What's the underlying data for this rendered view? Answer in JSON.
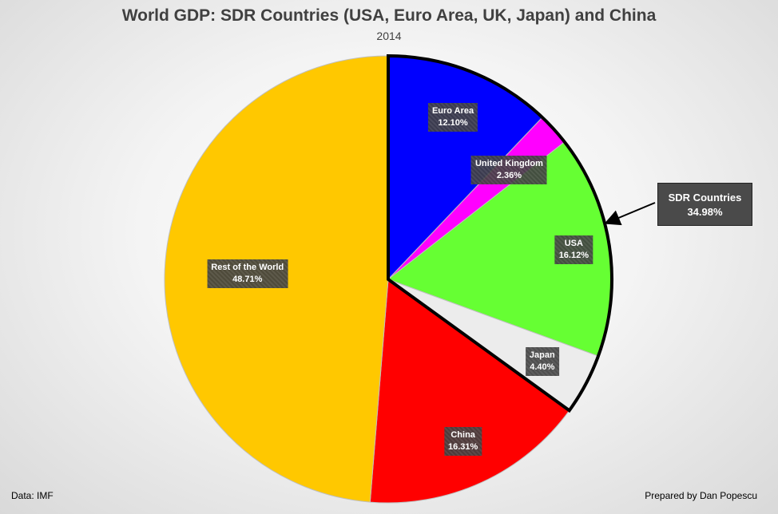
{
  "chart_data": {
    "type": "pie",
    "title": "World GDP: SDR Countries (USA, Euro Area, UK, Japan) and China",
    "subtitle": "2014",
    "slices": [
      {
        "label": "Euro Area",
        "value": 12.1,
        "value_text": "12.10%",
        "color": "#0000ff"
      },
      {
        "label": "United Kingdom",
        "value": 2.36,
        "value_text": "2.36%",
        "color": "#ff00ff"
      },
      {
        "label": "USA",
        "value": 16.12,
        "value_text": "16.12%",
        "color": "#66ff33"
      },
      {
        "label": "Japan",
        "value": 4.4,
        "value_text": "4.40%",
        "color": "#ececec"
      },
      {
        "label": "China",
        "value": 16.31,
        "value_text": "16.31%",
        "color": "#ff0000"
      },
      {
        "label": "Rest of the World",
        "value": 48.71,
        "value_text": "48.71%",
        "color": "#ffc800"
      }
    ],
    "highlight_group": {
      "label": "SDR Countries",
      "value_text": "34.98%",
      "members": [
        "Euro Area",
        "United Kingdom",
        "USA",
        "Japan"
      ]
    }
  },
  "footer": {
    "source": "Data: IMF",
    "credit": "Prepared by Dan Popescu"
  }
}
